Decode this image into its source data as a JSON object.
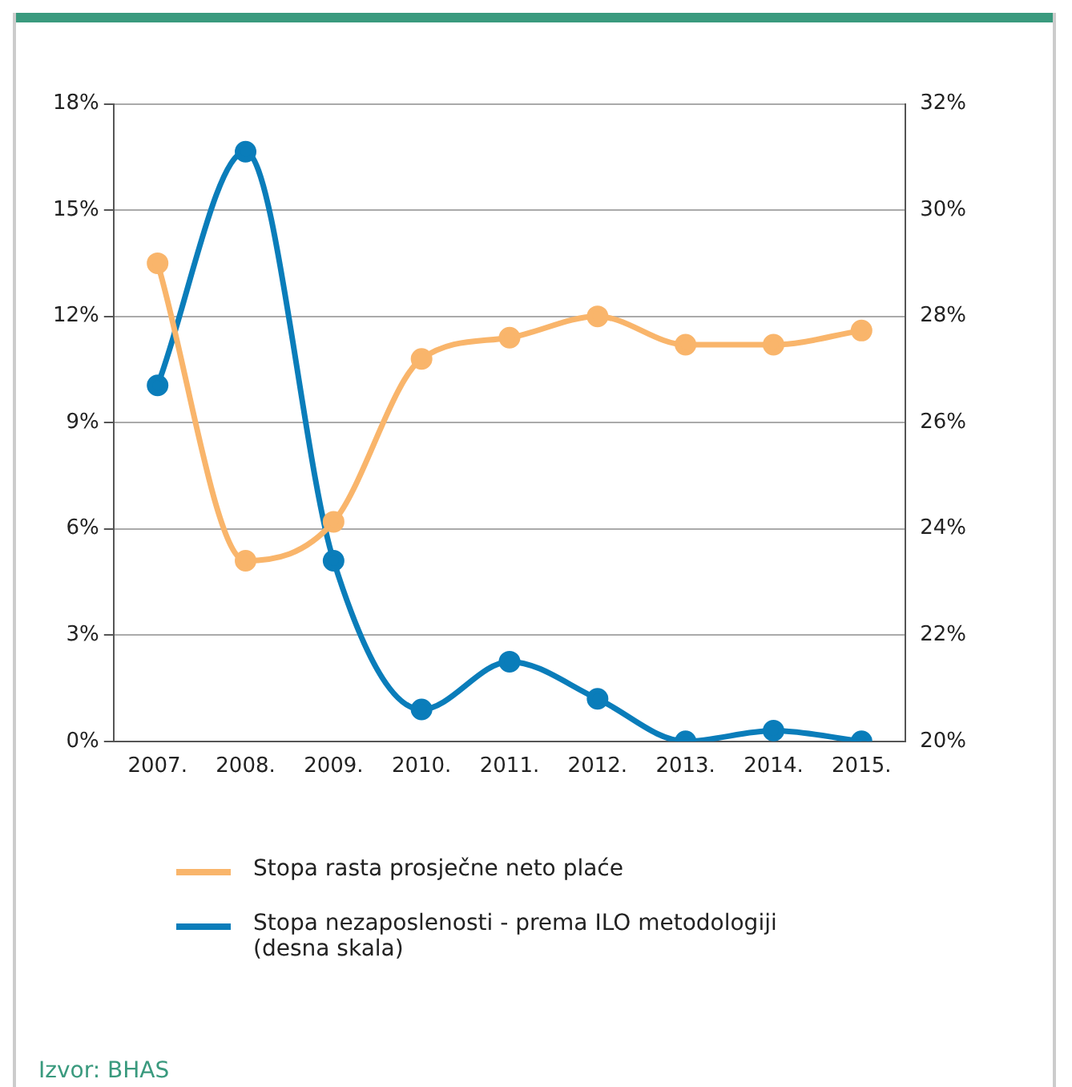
{
  "chart_data": {
    "type": "line",
    "categories": [
      "2007.",
      "2008.",
      "2009.",
      "2010.",
      "2011.",
      "2012.",
      "2013.",
      "2014.",
      "2015."
    ],
    "series": [
      {
        "name": "Stopa rasta prosječne neto plaće",
        "color": "#f9b56b",
        "values": [
          13.5,
          5.1,
          6.2,
          10.8,
          11.4,
          12.0,
          11.2,
          11.2,
          11.6
        ]
      },
      {
        "name": "Stopa nezaposlenosti - prema ILO metodologiji (desna skala)",
        "color": "#0a7dba",
        "axis": "y2",
        "values": [
          26.7,
          31.1,
          23.4,
          20.6,
          21.5,
          20.8,
          20.0,
          20.2,
          20.0
        ]
      }
    ],
    "ylim": [
      0,
      18
    ],
    "yticks": [
      {
        "value": 0,
        "label": "0%"
      },
      {
        "value": 3,
        "label": "3%"
      },
      {
        "value": 6,
        "label": "6%"
      },
      {
        "value": 9,
        "label": "9%"
      },
      {
        "value": 12,
        "label": "12%"
      },
      {
        "value": 15,
        "label": "15%"
      },
      {
        "value": 18,
        "label": "18%"
      }
    ],
    "y2lim": [
      20,
      32
    ],
    "y2ticks": [
      {
        "value": 20,
        "label": "20%"
      },
      {
        "value": 22,
        "label": "22%"
      },
      {
        "value": 24,
        "label": "24%"
      },
      {
        "value": 26,
        "label": "26%"
      },
      {
        "value": 28,
        "label": "28%"
      },
      {
        "value": 30,
        "label": "30%"
      },
      {
        "value": 32,
        "label": "32%"
      }
    ],
    "grid": "y",
    "legend": "bottom",
    "marker": "circle",
    "line_style": "solid",
    "annotations": [
      "Izvor: BHAS"
    ]
  }
}
